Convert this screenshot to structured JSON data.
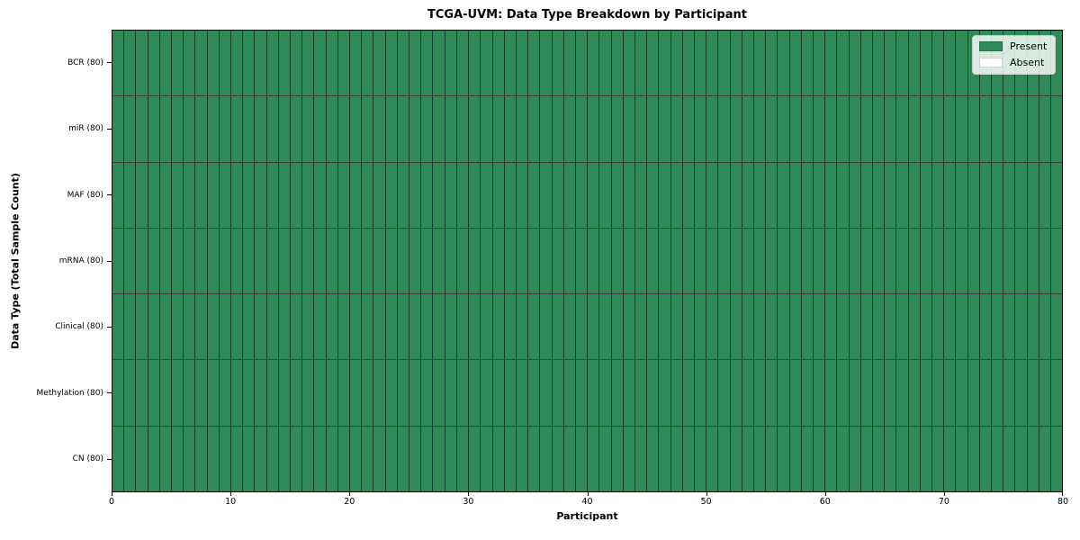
{
  "title": "TCGA-UVM: Data Type Breakdown by Participant",
  "legend": {
    "items": [
      {
        "label": "Present",
        "color": "#2e8b57"
      },
      {
        "label": "Absent",
        "color": "#ffffff"
      }
    ]
  },
  "colors": {
    "present": "#2e8b57",
    "absent": "#ffffff",
    "cell_border": "rgba(0,0,0,0.55)",
    "row_border": "rgba(0,0,0,0.75)",
    "spine": "#000000"
  },
  "chart_data": {
    "type": "heatmap",
    "title": "TCGA-UVM: Data Type Breakdown by Participant",
    "xlabel": "Participant",
    "ylabel": "Data Type (Total Sample Count)",
    "x_ticks": [
      0,
      10,
      20,
      30,
      40,
      50,
      60,
      70,
      80
    ],
    "xlim": [
      0,
      80
    ],
    "n_participants": 80,
    "cell_states": [
      "present",
      "absent"
    ],
    "rows": [
      {
        "label": "BCR (80)",
        "data_type": "BCR",
        "total_sample_count": 80,
        "present_count": 80,
        "absent_count": 0
      },
      {
        "label": "miR (80)",
        "data_type": "miR",
        "total_sample_count": 80,
        "present_count": 80,
        "absent_count": 0
      },
      {
        "label": "MAF (80)",
        "data_type": "MAF",
        "total_sample_count": 80,
        "present_count": 80,
        "absent_count": 0
      },
      {
        "label": "mRNA (80)",
        "data_type": "mRNA",
        "total_sample_count": 80,
        "present_count": 80,
        "absent_count": 0
      },
      {
        "label": "Clinical (80)",
        "data_type": "Clinical",
        "total_sample_count": 80,
        "present_count": 80,
        "absent_count": 0
      },
      {
        "label": "Methylation (80)",
        "data_type": "Methylation",
        "total_sample_count": 80,
        "present_count": 80,
        "absent_count": 0
      },
      {
        "label": "CN (80)",
        "data_type": "CN",
        "total_sample_count": 80,
        "present_count": 80,
        "absent_count": 0
      }
    ],
    "legend_entries": [
      "Present",
      "Absent"
    ],
    "legend_position": "upper right",
    "grid": "cell borders on"
  }
}
